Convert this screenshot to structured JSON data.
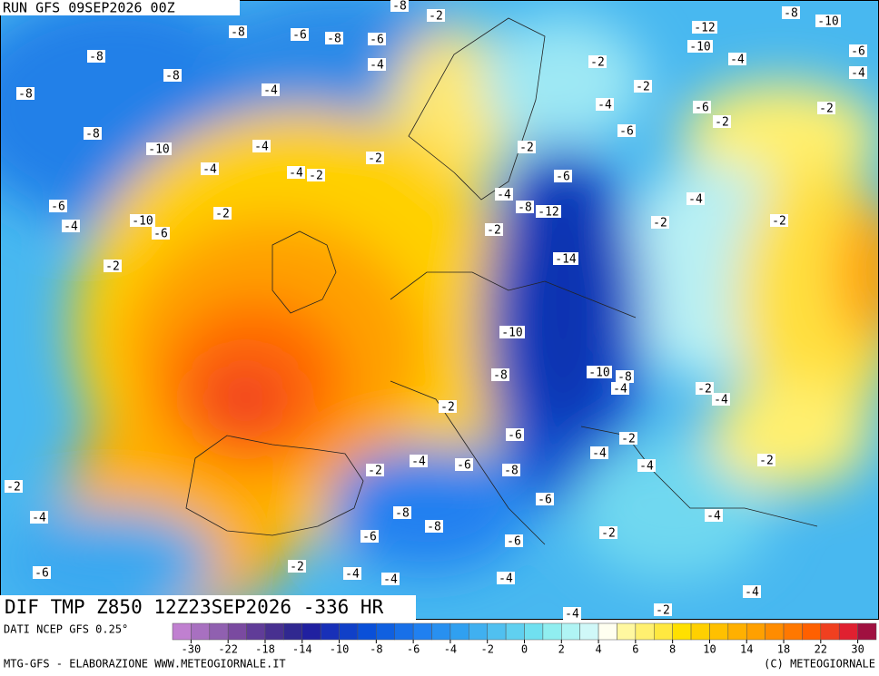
{
  "header": {
    "run": "RUN GFS 09SEP2026 00Z"
  },
  "map": {
    "title": "DIF TMP Z850 12Z23SEP2026 -336 HR",
    "contour_labels": [
      -8,
      -2,
      -8,
      -10,
      -8,
      -6,
      -8,
      -6,
      -12,
      -10,
      -6,
      -8,
      -4,
      -2,
      -4,
      -4,
      -8,
      -8,
      -4,
      -2,
      -4,
      -6,
      -2,
      -8,
      -2,
      -6,
      -10,
      -4,
      -2,
      -2,
      -4,
      -4,
      -2,
      -6,
      -4,
      -4,
      -6,
      -8,
      -12,
      -2,
      -4,
      -10,
      -6,
      -2,
      -2,
      -2,
      -14,
      -2,
      -10,
      -8,
      -10,
      -8,
      -4,
      -2,
      -4,
      -2,
      -6,
      -2,
      -4,
      -4,
      -6,
      -8,
      -2,
      -4,
      -2,
      -2,
      -6,
      -4,
      -8,
      -8,
      -4,
      -6,
      -2,
      -6,
      -2,
      -4,
      -4,
      -6,
      -4,
      -4,
      -4,
      -2
    ]
  },
  "colorbar": {
    "source": "DATI NCEP GFS 0.25°",
    "ticks": [
      -30,
      -22,
      -18,
      -14,
      -10,
      -8,
      -6,
      -4,
      -2,
      0,
      2,
      4,
      6,
      8,
      10,
      14,
      18,
      22,
      30
    ],
    "colors": [
      "#c080d0",
      "#a870c0",
      "#9060b0",
      "#7a4aa0",
      "#603c98",
      "#483090",
      "#302890",
      "#2020a0",
      "#1830b8",
      "#1040c8",
      "#0a50d8",
      "#1060e0",
      "#1870e8",
      "#2080f0",
      "#2890f0",
      "#30a0f0",
      "#40b0f0",
      "#50c0f0",
      "#60d0f0",
      "#70e0f0",
      "#90eef0",
      "#b0f4f4",
      "#d0f8f8",
      "#fffff0",
      "#fff8a0",
      "#fff070",
      "#ffe840",
      "#ffe000",
      "#ffd000",
      "#ffc000",
      "#ffb000",
      "#ffa000",
      "#ff8c00",
      "#ff7800",
      "#ff6000",
      "#f04020",
      "#e02030",
      "#a01040"
    ]
  },
  "footer": {
    "credit": "MTG-GFS - ELABORAZIONE WWW.METEOGIORNALE.IT",
    "copyright": "(C) METEOGIORNALE"
  }
}
